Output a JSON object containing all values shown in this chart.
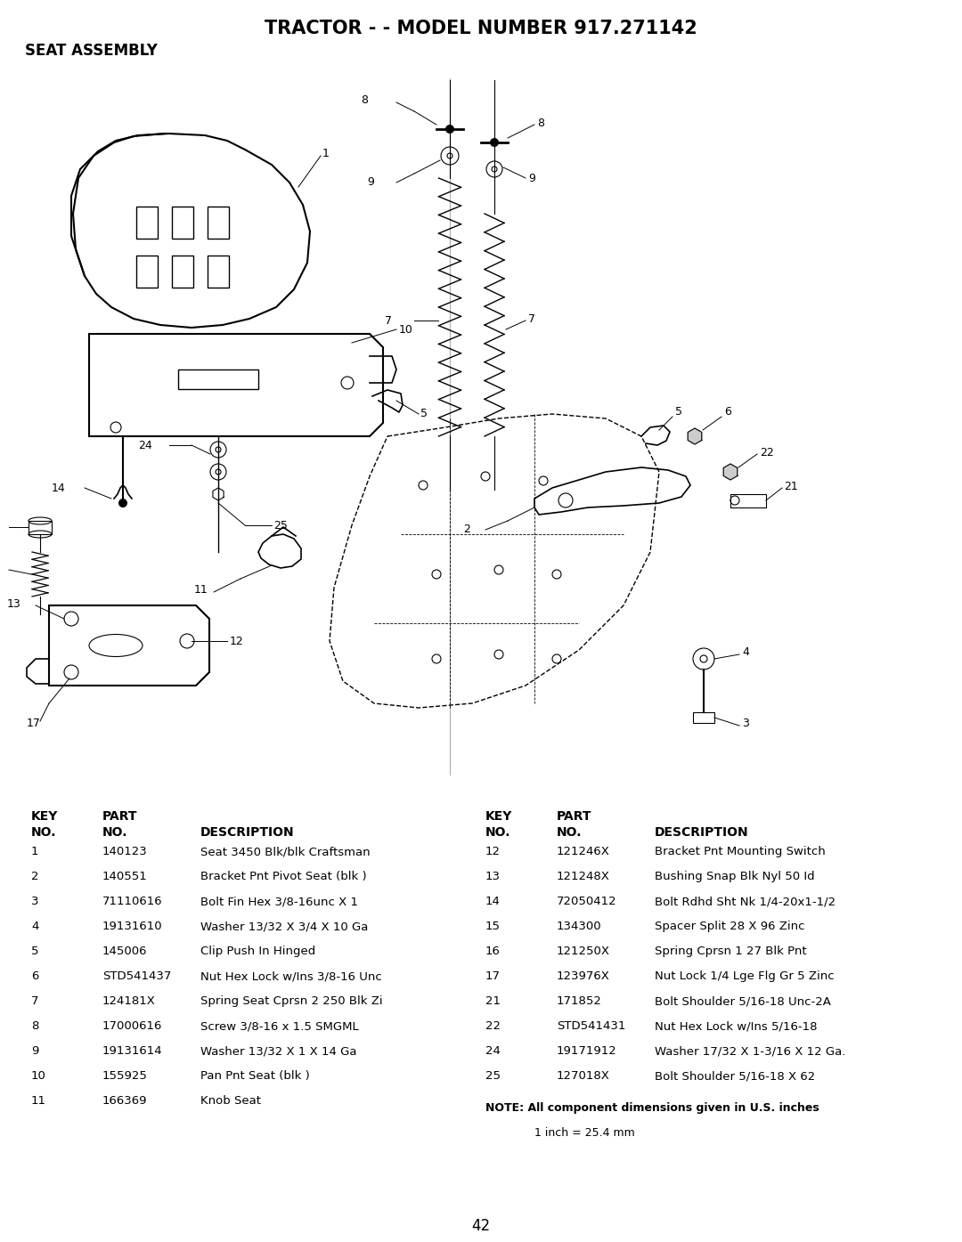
{
  "title": "TRACTOR - - MODEL NUMBER 917.271142",
  "subtitle": "SEAT ASSEMBLY",
  "page_number": "42",
  "background_color": "#ffffff",
  "left_parts": [
    [
      "1",
      "140123",
      "Seat 3450 Blk/blk Craftsman"
    ],
    [
      "2",
      "140551",
      "Bracket Pnt Pivot Seat (blk )"
    ],
    [
      "3",
      "71110616",
      "Bolt Fin Hex 3/8-16unc X 1"
    ],
    [
      "4",
      "19131610",
      "Washer 13/32 X 3/4 X 10 Ga"
    ],
    [
      "5",
      "145006",
      "Clip Push In Hinged"
    ],
    [
      "6",
      "STD541437",
      "Nut Hex Lock w/Ins 3/8-16 Unc"
    ],
    [
      "7",
      "124181X",
      "Spring Seat Cprsn 2 250 Blk Zi"
    ],
    [
      "8",
      "17000616",
      "Screw 3/8-16 x 1.5 SMGML"
    ],
    [
      "9",
      "19131614",
      "Washer 13/32 X 1 X 14 Ga"
    ],
    [
      "10",
      "155925",
      "Pan Pnt Seat (blk )"
    ],
    [
      "11",
      "166369",
      "Knob Seat"
    ]
  ],
  "right_parts": [
    [
      "12",
      "121246X",
      "Bracket Pnt Mounting Switch"
    ],
    [
      "13",
      "121248X",
      "Bushing Snap Blk Nyl 50 Id"
    ],
    [
      "14",
      "72050412",
      "Bolt Rdhd Sht Nk 1/4-20x1-1/2"
    ],
    [
      "15",
      "134300",
      "Spacer Split 28 X 96 Zinc"
    ],
    [
      "16",
      "121250X",
      "Spring Cprsn 1 27 Blk Pnt"
    ],
    [
      "17",
      "123976X",
      "Nut Lock 1/4 Lge Flg Gr 5 Zinc"
    ],
    [
      "21",
      "171852",
      "Bolt Shoulder 5/16-18 Unc-2A"
    ],
    [
      "22",
      "STD541431",
      "Nut Hex Lock w/Ins 5/16-18"
    ],
    [
      "24",
      "19171912",
      "Washer 17/32 X 1-3/16 X 12 Ga."
    ],
    [
      "25",
      "127018X",
      "Bolt Shoulder 5/16-18 X 62"
    ]
  ],
  "note_line1": "NOTE: All component dimensions given in U.S. inches",
  "note_line2": "1 inch = 25.4 mm"
}
